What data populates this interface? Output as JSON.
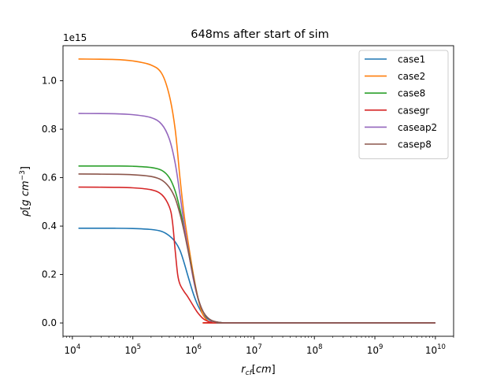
{
  "chart_data": {
    "type": "line",
    "title": "648ms after start of sim",
    "xlabel": "r_cf[cm]",
    "ylabel": "ρ[g cm^-3]",
    "x_scale": "log",
    "xlim": [
      7000,
      20000000000
    ],
    "ylim": [
      -0.055,
      1.145
    ],
    "y_offset_label": "1e15",
    "x_ticks": [
      {
        "value": 10000,
        "base": "10",
        "exp": "4"
      },
      {
        "value": 100000,
        "base": "10",
        "exp": "5"
      },
      {
        "value": 1000000,
        "base": "10",
        "exp": "6"
      },
      {
        "value": 10000000,
        "base": "10",
        "exp": "7"
      },
      {
        "value": 100000000,
        "base": "10",
        "exp": "8"
      },
      {
        "value": 1000000000,
        "base": "10",
        "exp": "9"
      },
      {
        "value": 10000000000,
        "base": "10",
        "exp": "10"
      }
    ],
    "y_ticks": [
      {
        "value": 0.0,
        "label": "0.0"
      },
      {
        "value": 0.2,
        "label": "0.2"
      },
      {
        "value": 0.4,
        "label": "0.4"
      },
      {
        "value": 0.6,
        "label": "0.6"
      },
      {
        "value": 0.8,
        "label": "0.8"
      },
      {
        "value": 1.0,
        "label": "1.0"
      }
    ],
    "grid": false,
    "legend_position": "top-right",
    "series": [
      {
        "name": "case1",
        "color": "#1f77b4",
        "x": [
          12600,
          50000,
          100000,
          200000,
          300000,
          400000,
          500000,
          600000,
          700000,
          800000,
          1000000,
          1200000,
          1500000,
          2000000,
          3000000,
          5000000,
          10000000000
        ],
        "y": [
          0.391,
          0.391,
          0.39,
          0.386,
          0.378,
          0.36,
          0.335,
          0.3,
          0.25,
          0.2,
          0.12,
          0.07,
          0.03,
          0.008,
          0.001,
          0.0,
          0.0
        ]
      },
      {
        "name": "case2",
        "color": "#ff7f0e",
        "x": [
          12600,
          50000,
          100000,
          200000,
          300000,
          400000,
          500000,
          600000,
          700000,
          800000,
          1000000,
          1200000,
          1400000,
          1700000,
          2000000,
          3000000,
          10000000000
        ],
        "y": [
          1.09,
          1.088,
          1.082,
          1.065,
          1.03,
          0.94,
          0.8,
          0.6,
          0.45,
          0.35,
          0.2,
          0.1,
          0.04,
          0.01,
          0.002,
          0.0,
          0.0
        ]
      },
      {
        "name": "case8",
        "color": "#2ca02c",
        "x": [
          12600,
          50000,
          100000,
          200000,
          300000,
          400000,
          500000,
          600000,
          700000,
          800000,
          1000000,
          1200000,
          1500000,
          2000000,
          3000000,
          5000000,
          10000000000
        ],
        "y": [
          0.648,
          0.648,
          0.647,
          0.642,
          0.63,
          0.6,
          0.545,
          0.47,
          0.39,
          0.32,
          0.19,
          0.1,
          0.04,
          0.01,
          0.001,
          0.0,
          0.0
        ]
      },
      {
        "name": "casegr",
        "color": "#d62728",
        "x": [
          12600,
          50000,
          100000,
          200000,
          300000,
          400000,
          450000,
          500000,
          550000,
          600000,
          700000,
          800000,
          1000000,
          1200000,
          1500000,
          2000000,
          3000000,
          10000000000
        ],
        "y": [
          0.561,
          0.56,
          0.558,
          0.55,
          0.53,
          0.48,
          0.42,
          0.3,
          0.2,
          0.16,
          0.13,
          0.11,
          0.07,
          0.04,
          0.015,
          0.003,
          0.0,
          0.0
        ]
      },
      {
        "name": "caseap2",
        "color": "#9467bd",
        "x": [
          12600,
          50000,
          100000,
          200000,
          300000,
          400000,
          500000,
          600000,
          700000,
          800000,
          1000000,
          1200000,
          1500000,
          2000000,
          3000000,
          5000000,
          10000000000
        ],
        "y": [
          0.865,
          0.864,
          0.86,
          0.848,
          0.82,
          0.76,
          0.66,
          0.53,
          0.41,
          0.32,
          0.18,
          0.1,
          0.04,
          0.01,
          0.001,
          0.0,
          0.0
        ]
      },
      {
        "name": "casep8",
        "color": "#8c564b",
        "x": [
          12600,
          50000,
          100000,
          200000,
          300000,
          400000,
          500000,
          600000,
          700000,
          800000,
          1000000,
          1200000,
          1500000,
          2000000,
          3000000,
          5000000,
          10000000000
        ],
        "y": [
          0.615,
          0.614,
          0.612,
          0.605,
          0.59,
          0.56,
          0.515,
          0.45,
          0.38,
          0.31,
          0.19,
          0.1,
          0.04,
          0.01,
          0.001,
          0.0,
          0.0
        ]
      }
    ]
  }
}
